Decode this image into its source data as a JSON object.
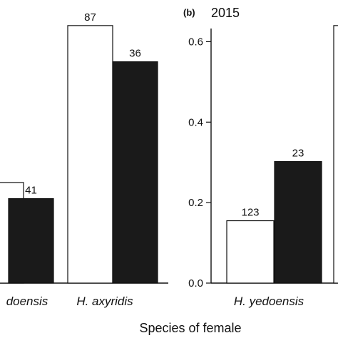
{
  "chart_data": [
    {
      "panel": "a",
      "type": "bar",
      "categories": [
        "H. yedoensis",
        "H. axyridis"
      ],
      "visible_category_labels": [
        "doensis",
        "H. axyridis"
      ],
      "ylim": [
        0,
        0.7
      ],
      "series": [
        {
          "color": "#ffffff",
          "values": [
            0.25,
            0.64
          ],
          "labels": [
            "",
            "87"
          ]
        },
        {
          "color": "#1a1a1a",
          "values": [
            0.21,
            0.55
          ],
          "labels": [
            "41",
            "36"
          ]
        }
      ]
    },
    {
      "panel": "b",
      "panel_tag": "(b)",
      "title": "2015",
      "type": "bar",
      "categories": [
        "H. yedoensis"
      ],
      "ylim": [
        0,
        0.7
      ],
      "yticks": [
        "0.0",
        "0.2",
        "0.4",
        "0.6"
      ],
      "yticks_values": [
        0,
        0.2,
        0.4,
        0.6
      ],
      "series": [
        {
          "color": "#ffffff",
          "values": [
            0.155
          ],
          "labels": [
            "123"
          ]
        },
        {
          "color": "#1a1a1a",
          "values": [
            0.302
          ],
          "labels": [
            "23"
          ]
        }
      ],
      "partial_bar_value": 0.64
    }
  ],
  "xlabel": "Species of female"
}
